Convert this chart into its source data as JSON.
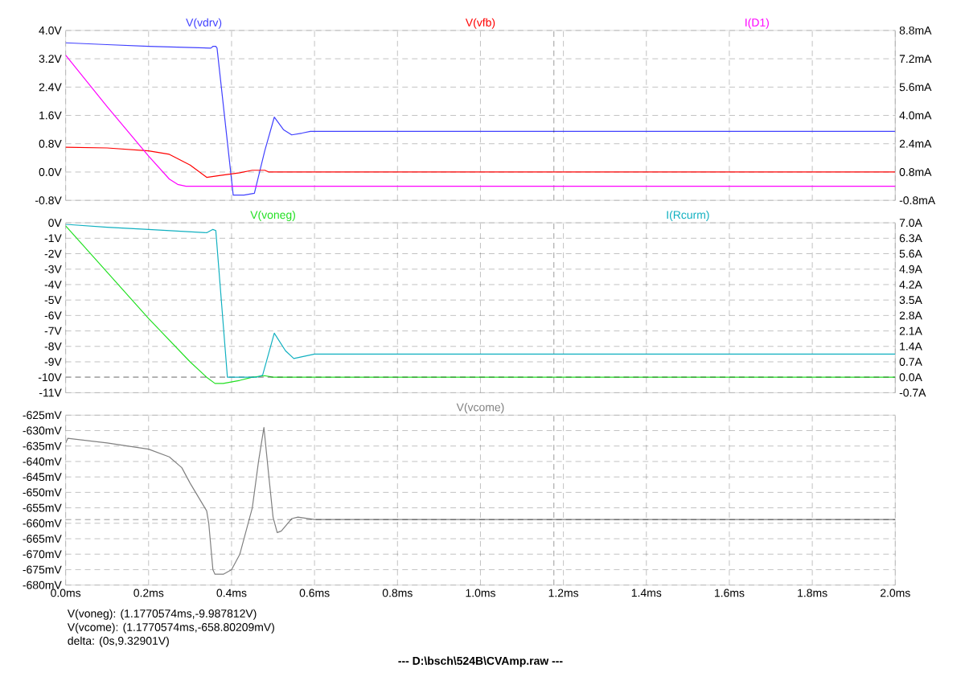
{
  "chart_data": [
    {
      "type": "line",
      "xlim": [
        0,
        2.0
      ],
      "xticks": [
        {
          "value": 0,
          "label": null
        },
        {
          "value": 0.2,
          "label": null
        },
        {
          "value": 0.4,
          "label": null
        },
        {
          "value": 0.6,
          "label": null
        },
        {
          "value": 0.8,
          "label": null
        },
        {
          "value": 1.0,
          "label": null
        },
        {
          "value": 1.2,
          "label": null
        },
        {
          "value": 1.4,
          "label": null
        },
        {
          "value": 1.6,
          "label": null
        },
        {
          "value": 1.8,
          "label": null
        },
        {
          "value": 2.0,
          "label": null
        }
      ],
      "ylim": [
        -0.8,
        4.0
      ],
      "yticks": [
        {
          "value": 4.0,
          "label": "4.0V"
        },
        {
          "value": 3.2,
          "label": "3.2V"
        },
        {
          "value": 2.4,
          "label": "2.4V"
        },
        {
          "value": 1.6,
          "label": "1.6V"
        },
        {
          "value": 0.8,
          "label": "0.8V"
        },
        {
          "value": 0.0,
          "label": "0.0V"
        },
        {
          "value": -0.8,
          "label": "-0.8V"
        }
      ],
      "y2lim": [
        -0.8,
        8.8
      ],
      "y2ticks": [
        {
          "value": 8.8,
          "label": "8.8mA"
        },
        {
          "value": 7.2,
          "label": "7.2mA"
        },
        {
          "value": 5.6,
          "label": "5.6mA"
        },
        {
          "value": 4.0,
          "label": "4.0mA"
        },
        {
          "value": 2.4,
          "label": "2.4mA"
        },
        {
          "value": 0.8,
          "label": "0.8mA"
        },
        {
          "value": -0.8,
          "label": "-0.8mA"
        }
      ],
      "grid": true,
      "tick_labels": "y",
      "ref_lines": [
        {
          "axis": "x",
          "value": 1.1770574,
          "color": "#000000",
          "line_style": "dashed"
        }
      ],
      "series": [
        {
          "name": "V(vdrv)",
          "color": "#4040ff",
          "x": [
            0,
            0.1,
            0.2,
            0.35,
            0.355,
            0.362,
            0.365,
            0.404,
            0.43,
            0.455,
            0.48,
            0.503,
            0.525,
            0.545,
            0.57,
            0.59,
            2.0
          ],
          "values": [
            3.65,
            3.6,
            3.55,
            3.5,
            3.55,
            3.55,
            3.5,
            -0.65,
            -0.65,
            -0.6,
            0.6,
            1.55,
            1.2,
            1.05,
            1.1,
            1.15,
            1.15
          ]
        },
        {
          "name": "V(vfb)",
          "color": "#ff0000",
          "x": [
            0,
            0.1,
            0.2,
            0.25,
            0.3,
            0.34,
            0.37,
            0.42,
            0.45,
            0.48,
            0.49,
            2.0
          ],
          "values": [
            0.7,
            0.68,
            0.6,
            0.5,
            0.2,
            -0.15,
            -0.1,
            -0.02,
            0.05,
            0.05,
            0.0,
            0.0
          ]
        },
        {
          "name": "I(D1)",
          "color": "#ff00ff",
          "axis": "y2",
          "x": [
            0,
            0.1,
            0.2,
            0.25,
            0.27,
            0.29,
            2.0
          ],
          "values": [
            7.4,
            4.5,
            1.7,
            0.4,
            0.1,
            0.0,
            0.0
          ]
        }
      ]
    },
    {
      "type": "line",
      "xlim": [
        0,
        2.0
      ],
      "xticks": [
        {
          "value": 0,
          "label": null
        },
        {
          "value": 0.2,
          "label": null
        },
        {
          "value": 0.4,
          "label": null
        },
        {
          "value": 0.6,
          "label": null
        },
        {
          "value": 0.8,
          "label": null
        },
        {
          "value": 1.0,
          "label": null
        },
        {
          "value": 1.2,
          "label": null
        },
        {
          "value": 1.4,
          "label": null
        },
        {
          "value": 1.6,
          "label": null
        },
        {
          "value": 1.8,
          "label": null
        },
        {
          "value": 2.0,
          "label": null
        }
      ],
      "ylim": [
        -11,
        0
      ],
      "yticks": [
        {
          "value": 0,
          "label": "0V"
        },
        {
          "value": -1,
          "label": "-1V"
        },
        {
          "value": -2,
          "label": "-2V"
        },
        {
          "value": -3,
          "label": "-3V"
        },
        {
          "value": -4,
          "label": "-4V"
        },
        {
          "value": -5,
          "label": "-5V"
        },
        {
          "value": -6,
          "label": "-6V"
        },
        {
          "value": -7,
          "label": "-7V"
        },
        {
          "value": -8,
          "label": "-8V"
        },
        {
          "value": -9,
          "label": "-9V"
        },
        {
          "value": -10,
          "label": "-10V"
        },
        {
          "value": -11,
          "label": "-11V"
        }
      ],
      "y2lim": [
        -0.7,
        7.0
      ],
      "y2ticks": [
        {
          "value": 7.0,
          "label": "7.0A"
        },
        {
          "value": 6.3,
          "label": "6.3A"
        },
        {
          "value": 5.6,
          "label": "5.6A"
        },
        {
          "value": 4.9,
          "label": "4.9A"
        },
        {
          "value": 4.2,
          "label": "4.2A"
        },
        {
          "value": 3.5,
          "label": "3.5A"
        },
        {
          "value": 2.8,
          "label": "2.8A"
        },
        {
          "value": 2.1,
          "label": "2.1A"
        },
        {
          "value": 1.4,
          "label": "1.4A"
        },
        {
          "value": 0.7,
          "label": "0.7A"
        },
        {
          "value": 0.0,
          "label": "0.0A"
        },
        {
          "value": -0.7,
          "label": "-0.7A"
        }
      ],
      "grid": true,
      "tick_labels": "y",
      "ref_lines": [
        {
          "axis": "x",
          "value": 1.1770574,
          "color": "#000000",
          "line_style": "dashed"
        },
        {
          "axis": "y",
          "value": -9.987812,
          "color": "#000000",
          "line_style": "dashed"
        }
      ],
      "series": [
        {
          "name": "V(voneg)",
          "color": "#22e022",
          "x": [
            0,
            0.1,
            0.2,
            0.3,
            0.34,
            0.36,
            0.38,
            0.42,
            0.45,
            0.48,
            0.5,
            2.0
          ],
          "values": [
            -0.2,
            -3.2,
            -6.2,
            -9.0,
            -10.0,
            -10.4,
            -10.4,
            -10.2,
            -10.0,
            -9.9,
            -10.0,
            -10.0
          ]
        },
        {
          "name": "I(Rcurm)",
          "color": "#10b0c0",
          "axis": "y2",
          "x": [
            0,
            0.1,
            0.2,
            0.34,
            0.355,
            0.362,
            0.39,
            0.46,
            0.475,
            0.503,
            0.53,
            0.55,
            0.6,
            2.0
          ],
          "values": [
            6.93,
            6.8,
            6.7,
            6.55,
            6.7,
            6.65,
            0.0,
            0.0,
            0.1,
            2.0,
            1.2,
            0.85,
            1.05,
            1.05
          ]
        }
      ]
    },
    {
      "type": "line",
      "xlim": [
        0,
        2.0
      ],
      "xticks": [
        {
          "value": 0,
          "label": "0.0ms"
        },
        {
          "value": 0.2,
          "label": "0.2ms"
        },
        {
          "value": 0.4,
          "label": "0.4ms"
        },
        {
          "value": 0.6,
          "label": "0.6ms"
        },
        {
          "value": 0.8,
          "label": "0.8ms"
        },
        {
          "value": 1.0,
          "label": "1.0ms"
        },
        {
          "value": 1.2,
          "label": "1.2ms"
        },
        {
          "value": 1.4,
          "label": "1.4ms"
        },
        {
          "value": 1.6,
          "label": "1.6ms"
        },
        {
          "value": 1.8,
          "label": "1.8ms"
        },
        {
          "value": 2.0,
          "label": "2.0ms"
        }
      ],
      "ylim": [
        -680,
        -625
      ],
      "yticks": [
        {
          "value": -625,
          "label": "-625mV"
        },
        {
          "value": -630,
          "label": "-630mV"
        },
        {
          "value": -635,
          "label": "-635mV"
        },
        {
          "value": -640,
          "label": "-640mV"
        },
        {
          "value": -645,
          "label": "-645mV"
        },
        {
          "value": -650,
          "label": "-650mV"
        },
        {
          "value": -655,
          "label": "-655mV"
        },
        {
          "value": -660,
          "label": "-660mV"
        },
        {
          "value": -665,
          "label": "-665mV"
        },
        {
          "value": -670,
          "label": "-670mV"
        },
        {
          "value": -675,
          "label": "-675mV"
        },
        {
          "value": -680,
          "label": "-680mV"
        }
      ],
      "grid": true,
      "ref_lines": [
        {
          "axis": "x",
          "value": 1.1770574,
          "color": "#000000",
          "line_style": "dashed"
        },
        {
          "axis": "y",
          "value": -658.80209,
          "color": "#000000",
          "line_style": "dashed"
        }
      ],
      "series": [
        {
          "name": "V(vcome)",
          "color": "#808080",
          "x": [
            0,
            0.005,
            0.1,
            0.2,
            0.25,
            0.28,
            0.3,
            0.34,
            0.345,
            0.355,
            0.36,
            0.38,
            0.4,
            0.42,
            0.45,
            0.465,
            0.478,
            0.49,
            0.5,
            0.51,
            0.52,
            0.545,
            0.56,
            0.6,
            2.0
          ],
          "values": [
            -634,
            -632.5,
            -634,
            -636,
            -638.5,
            -642,
            -647,
            -656,
            -660,
            -675,
            -676.5,
            -676.5,
            -675,
            -670,
            -655,
            -640,
            -629,
            -645,
            -658,
            -663,
            -662.5,
            -658.5,
            -658,
            -658.8,
            -658.8
          ]
        }
      ],
      "annotations": [
        "V(voneg): (1.1770574ms,-9.987812V)",
        "V(vcome): (1.1770574ms,-658.80209mV)",
        "delta: (0s,9.32901V)",
        "--- D:\\bsch\\524B\\CVAmp.raw ---"
      ]
    }
  ]
}
